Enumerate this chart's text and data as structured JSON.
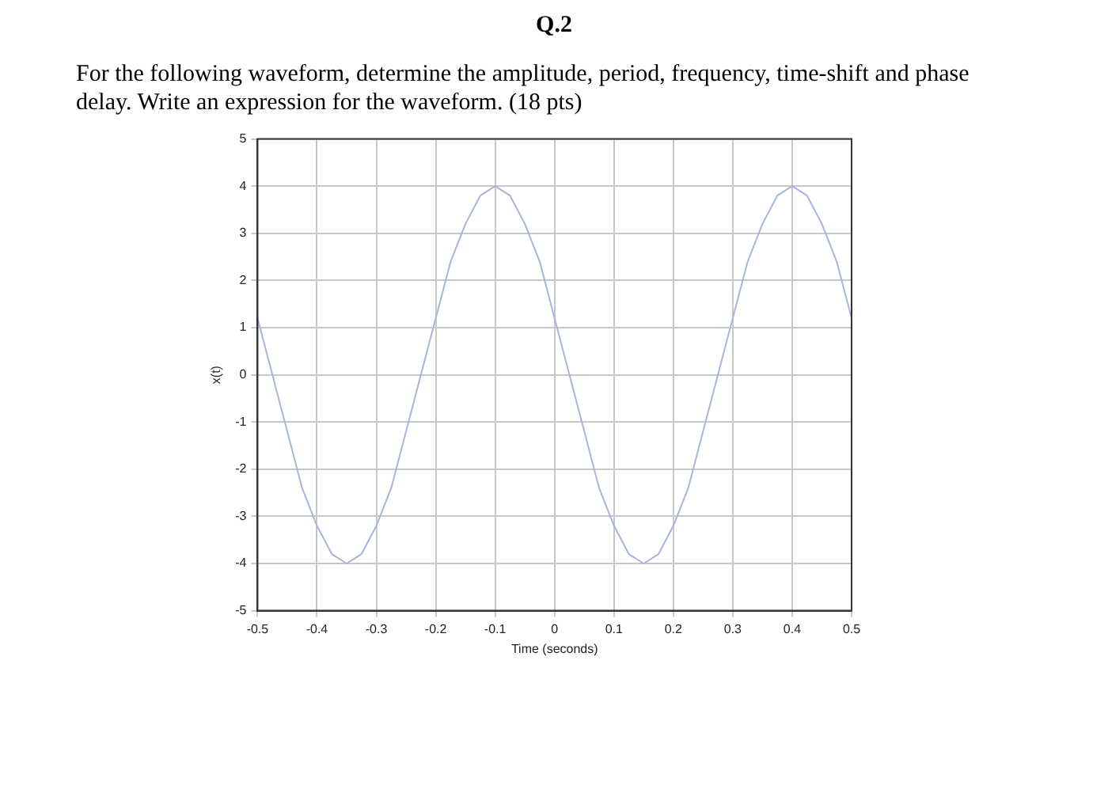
{
  "chart_data": {
    "type": "line",
    "title": "Q.2",
    "subtitle": "For the following waveform, determine the amplitude, period, frequency, time-shift and phase delay. Write an expression for the waveform. (18 pts)",
    "xlabel": "Time (seconds)",
    "ylabel": "x(t)",
    "x": [
      -0.5,
      -0.475,
      -0.45,
      -0.425,
      -0.4,
      -0.375,
      -0.35,
      -0.325,
      -0.3,
      -0.275,
      -0.25,
      -0.225,
      -0.2,
      -0.175,
      -0.15,
      -0.125,
      -0.1,
      -0.075,
      -0.05,
      -0.025,
      0,
      0.025,
      0.05,
      0.075,
      0.1,
      0.125,
      0.15,
      0.175,
      0.2,
      0.225,
      0.25,
      0.275,
      0.3,
      0.325,
      0.35,
      0.375,
      0.4,
      0.425,
      0.45,
      0.475,
      0.5
    ],
    "series": [
      {
        "color": "#a9b3e0",
        "values": [
          1.2,
          0,
          -1.2,
          -2.4,
          -3.2,
          -3.8,
          -4,
          -3.8,
          -3.2,
          -2.4,
          -1.2,
          0,
          1.2,
          2.4,
          3.2,
          3.8,
          4,
          3.8,
          3.2,
          2.4,
          1.2,
          0,
          -1.2,
          -2.4,
          -3.2,
          -3.8,
          -4,
          -3.8,
          -3.2,
          -2.4,
          -1.2,
          0,
          1.2,
          2.4,
          3.2,
          3.8,
          4,
          3.8,
          3.2,
          2.4,
          1.2
        ]
      }
    ],
    "xlim": [
      -0.5,
      0.5
    ],
    "xticks": [
      -0.5,
      -0.4,
      -0.3,
      -0.2,
      -0.1,
      0,
      0.1,
      0.2,
      0.3,
      0.4,
      0.5
    ],
    "ylim": [
      -5,
      5
    ],
    "yticks": [
      -5,
      -4,
      -3,
      -2,
      -1,
      0,
      1,
      2,
      3,
      4,
      5
    ],
    "grid": true,
    "legend": false,
    "marker": "none",
    "line_style": "solid"
  }
}
